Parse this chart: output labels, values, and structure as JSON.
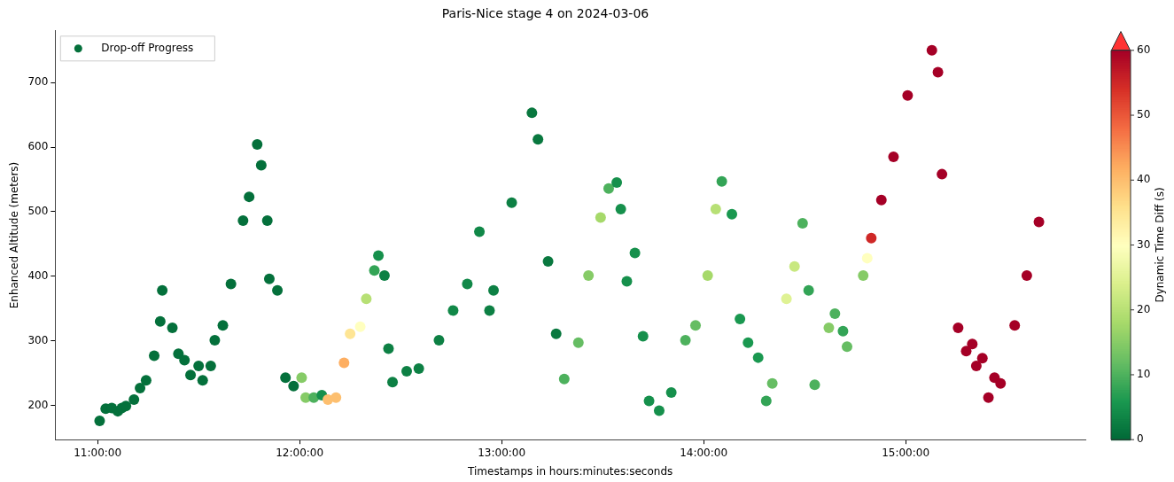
{
  "chart_data": {
    "type": "scatter",
    "title": "Paris-Nice stage 4 on 2024-03-06",
    "xlabel": "Timestamps in hours:minutes:seconds",
    "ylabel": "Enhanced Altitude (meters)",
    "clabel": "Dynamic Time Diff (s)",
    "xlim": [
      10.79,
      15.89
    ],
    "ylim": [
      147,
      780
    ],
    "xticks": [
      {
        "value": 11,
        "label": "11:00:00"
      },
      {
        "value": 12,
        "label": "12:00:00"
      },
      {
        "value": 13,
        "label": "13:00:00"
      },
      {
        "value": 14,
        "label": "14:00:00"
      },
      {
        "value": 15,
        "label": "15:00:00"
      }
    ],
    "yticks": [
      200,
      300,
      400,
      500,
      600,
      700
    ],
    "clim": [
      0,
      60
    ],
    "cticks": [
      0,
      10,
      20,
      30,
      40,
      50,
      60
    ],
    "legend": "top left",
    "marker": "circle",
    "grid": false,
    "series": [
      {
        "name": "Drop-off Progress",
        "x": [
          11.01,
          11.04,
          11.07,
          11.1,
          11.12,
          11.14,
          11.18,
          11.21,
          11.24,
          11.28,
          11.31,
          11.32,
          11.37,
          11.4,
          11.43,
          11.46,
          11.5,
          11.52,
          11.56,
          11.58,
          11.62,
          11.66,
          11.72,
          11.75,
          11.79,
          11.81,
          11.84,
          11.85,
          11.89,
          11.93,
          11.97,
          12.01,
          12.03,
          12.07,
          12.11,
          12.14,
          12.18,
          12.22,
          12.25,
          12.3,
          12.33,
          12.37,
          12.39,
          12.42,
          12.44,
          12.46,
          12.53,
          12.59,
          12.69,
          12.76,
          12.83,
          12.89,
          12.94,
          12.96,
          13.05,
          13.15,
          13.18,
          13.23,
          13.27,
          13.31,
          13.38,
          13.43,
          13.49,
          13.53,
          13.57,
          13.59,
          13.62,
          13.66,
          13.7,
          13.73,
          13.78,
          13.84,
          13.91,
          13.96,
          14.02,
          14.06,
          14.09,
          14.14,
          14.18,
          14.22,
          14.27,
          14.31,
          14.34,
          14.41,
          14.45,
          14.49,
          14.52,
          14.55,
          14.62,
          14.65,
          14.69,
          14.71,
          14.79,
          14.81,
          14.83,
          14.88,
          14.94,
          15.01,
          15.13,
          15.16,
          15.18,
          15.26,
          15.3,
          15.33,
          15.35,
          15.38,
          15.41,
          15.44,
          15.47,
          15.54,
          15.6,
          15.66
        ],
        "values": [
          176,
          195,
          196,
          191,
          196,
          199,
          209,
          227,
          239,
          277,
          330,
          378,
          320,
          280,
          270,
          247,
          261,
          239,
          261,
          301,
          324,
          388,
          486,
          523,
          604,
          572,
          486,
          396,
          378,
          243,
          230,
          243,
          212,
          212,
          216,
          209,
          212,
          266,
          311,
          322,
          365,
          409,
          432,
          401,
          288,
          236,
          253,
          257,
          301,
          347,
          388,
          469,
          347,
          378,
          514,
          653,
          612,
          423,
          311,
          241,
          297,
          401,
          491,
          536,
          545,
          504,
          392,
          436,
          307,
          207,
          192,
          220,
          301,
          324,
          401,
          504,
          547,
          496,
          334,
          297,
          274,
          207,
          234,
          365,
          415,
          482,
          378,
          232,
          320,
          342,
          315,
          291,
          401,
          428,
          459,
          518,
          585,
          680,
          750,
          716,
          558,
          320,
          284,
          295,
          261,
          273,
          212,
          243,
          234,
          324,
          401,
          484
        ],
        "cvalues": [
          1,
          1,
          1,
          1,
          1,
          1,
          1,
          1,
          1,
          1,
          1,
          1,
          1,
          1,
          1,
          1,
          1,
          1,
          1,
          1,
          1,
          1,
          1,
          1,
          1,
          1,
          1,
          1,
          1,
          1,
          1,
          15,
          15,
          10,
          5,
          40,
          40,
          42,
          35,
          30,
          20,
          8,
          5,
          3,
          3,
          3,
          3,
          3,
          3,
          4,
          4,
          4,
          3,
          3,
          3,
          2,
          2,
          2,
          2,
          10,
          12,
          15,
          18,
          10,
          5,
          5,
          5,
          5,
          5,
          5,
          5,
          5,
          10,
          12,
          18,
          20,
          8,
          6,
          6,
          6,
          6,
          8,
          12,
          25,
          22,
          10,
          8,
          10,
          15,
          10,
          8,
          12,
          15,
          30,
          55,
          60,
          60,
          60,
          60,
          60,
          60,
          60,
          60,
          60,
          60,
          60,
          60,
          60,
          60,
          60,
          60,
          60
        ]
      }
    ]
  }
}
